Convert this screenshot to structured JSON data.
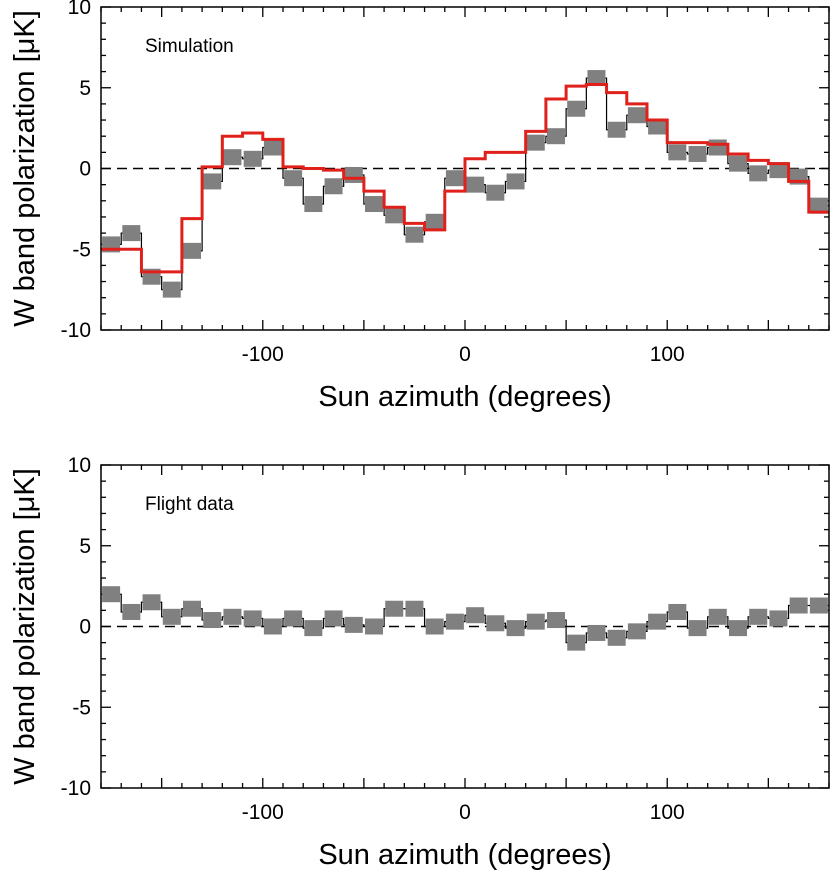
{
  "chart_data": [
    {
      "type": "line",
      "annotation": "Simulation",
      "xlabel": "Sun azimuth (degrees)",
      "ylabel": "W band polarization [μK]",
      "xlim": [
        -180,
        180
      ],
      "ylim": [
        -10,
        10
      ],
      "xticks": [
        -100,
        0,
        100
      ],
      "yticks": [
        -10,
        -5,
        0,
        5,
        10
      ],
      "zero_line": "dashed",
      "x": [
        -175,
        -165,
        -155,
        -145,
        -135,
        -125,
        -115,
        -105,
        -95,
        -85,
        -75,
        -65,
        -55,
        -45,
        -35,
        -25,
        -15,
        -5,
        5,
        15,
        25,
        35,
        45,
        55,
        65,
        75,
        85,
        95,
        105,
        115,
        125,
        135,
        145,
        155,
        165,
        175
      ],
      "series": [
        {
          "style": "thin-black-step-with-gray-squares",
          "color": "#808080",
          "values": [
            -4.7,
            -4.0,
            -6.7,
            -7.5,
            -5.1,
            -0.8,
            0.7,
            0.6,
            1.3,
            -0.6,
            -2.2,
            -1.1,
            -0.4,
            -2.2,
            -2.9,
            -4.1,
            -3.3,
            -0.6,
            -1.0,
            -1.5,
            -0.8,
            1.6,
            2.0,
            3.7,
            5.6,
            2.4,
            3.3,
            2.6,
            1.0,
            0.9,
            1.3,
            0.3,
            -0.3,
            -0.1,
            -0.5,
            -2.3
          ]
        },
        {
          "style": "red-step",
          "color": "#e0201b",
          "values": [
            -5.0,
            -5.0,
            -6.4,
            -6.4,
            -3.1,
            0.1,
            2.0,
            2.2,
            1.8,
            0.1,
            0.0,
            -0.1,
            -0.6,
            -1.4,
            -2.4,
            -3.4,
            -3.8,
            -1.4,
            0.6,
            1.0,
            1.0,
            2.3,
            4.3,
            5.1,
            5.2,
            4.7,
            4.0,
            3.0,
            1.6,
            1.6,
            1.5,
            0.9,
            0.5,
            0.3,
            -0.8,
            -2.7
          ]
        }
      ]
    },
    {
      "type": "line",
      "annotation": "Flight data",
      "xlabel": "Sun azimuth (degrees)",
      "ylabel": "W band polarization [μK]",
      "xlim": [
        -180,
        180
      ],
      "ylim": [
        -10,
        10
      ],
      "xticks": [
        -100,
        0,
        100
      ],
      "yticks": [
        -10,
        -5,
        0,
        5,
        10
      ],
      "zero_line": "dashed",
      "x": [
        -175,
        -165,
        -155,
        -145,
        -135,
        -125,
        -115,
        -105,
        -95,
        -85,
        -75,
        -65,
        -55,
        -45,
        -35,
        -25,
        -15,
        -5,
        5,
        15,
        25,
        35,
        45,
        55,
        65,
        75,
        85,
        95,
        105,
        115,
        125,
        135,
        145,
        155,
        165,
        175
      ],
      "series": [
        {
          "style": "thin-black-step-with-gray-squares",
          "color": "#808080",
          "values": [
            2.0,
            0.9,
            1.5,
            0.6,
            1.1,
            0.4,
            0.6,
            0.5,
            0.0,
            0.5,
            -0.1,
            0.5,
            0.1,
            0.0,
            1.1,
            1.1,
            0.0,
            0.3,
            0.7,
            0.2,
            -0.1,
            0.3,
            0.4,
            -1.0,
            -0.4,
            -0.7,
            -0.3,
            0.3,
            0.9,
            -0.1,
            0.6,
            -0.1,
            0.6,
            0.5,
            1.3,
            1.3
          ]
        }
      ]
    }
  ]
}
